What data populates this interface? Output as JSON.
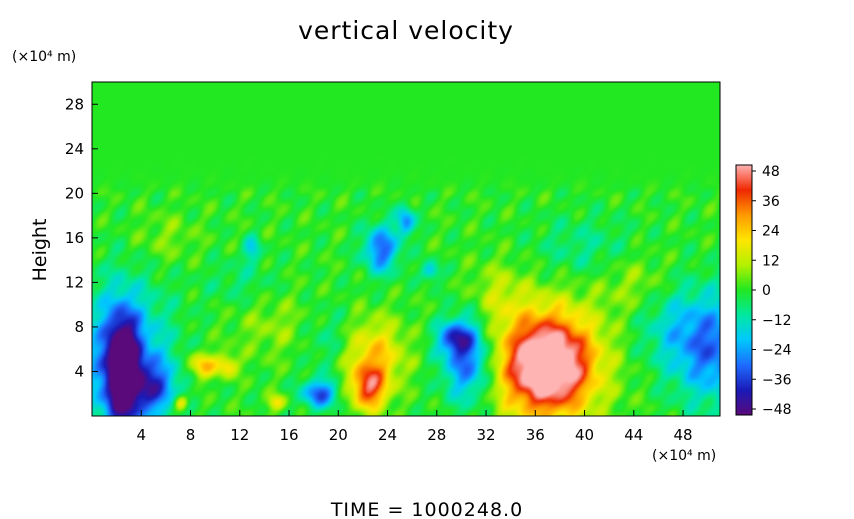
{
  "chart_data": {
    "type": "heatmap",
    "title": "vertical velocity",
    "ylabel": "Height",
    "y_unit": "(×10⁴ m)",
    "x_unit": "(×10⁴ m)",
    "x_ticks": [
      "4",
      "8",
      "12",
      "16",
      "20",
      "24",
      "28",
      "32",
      "36",
      "40",
      "44",
      "48"
    ],
    "y_ticks": [
      "4",
      "8",
      "12",
      "16",
      "20",
      "24",
      "28"
    ],
    "xlim": [
      0,
      51
    ],
    "ylim": [
      0,
      30
    ],
    "colorbar": {
      "ticks": [
        "48",
        "36",
        "24",
        "12",
        "0",
        "−12",
        "−24",
        "−36",
        "−48"
      ],
      "range": [
        -48,
        48
      ],
      "colors": [
        "#5a0a7a",
        "#1a1ab8",
        "#1e6cff",
        "#00c8ff",
        "#00e8a0",
        "#22e822",
        "#b4f000",
        "#ffe600",
        "#ff9a00",
        "#f02800",
        "#ffb4b4"
      ]
    },
    "features": [
      {
        "x": 37,
        "y": 4.5,
        "sx": 2.3,
        "sy": 2.8,
        "v": 48
      },
      {
        "x": 37,
        "y": 5,
        "sx": 3.4,
        "sy": 3.9,
        "v": 22
      },
      {
        "x": 22.5,
        "y": 2.5,
        "sx": 1.0,
        "sy": 1.4,
        "v": 35
      },
      {
        "x": 23,
        "y": 5.5,
        "sx": 1.7,
        "sy": 2.2,
        "v": 22
      },
      {
        "x": 9,
        "y": 4.5,
        "sx": 0.8,
        "sy": 0.8,
        "v": 25
      },
      {
        "x": 11,
        "y": 4.5,
        "sx": 0.6,
        "sy": 0.7,
        "v": 20
      },
      {
        "x": 7.2,
        "y": 1.2,
        "sx": 0.4,
        "sy": 0.5,
        "v": 26
      },
      {
        "x": 15,
        "y": 1.2,
        "sx": 0.5,
        "sy": 0.5,
        "v": 18
      },
      {
        "x": 2.5,
        "y": 4,
        "sx": 0.9,
        "sy": 3.5,
        "v": -48
      },
      {
        "x": 2.5,
        "y": 5,
        "sx": 2.6,
        "sy": 4.5,
        "v": -28
      },
      {
        "x": 5,
        "y": 2.5,
        "sx": 1.3,
        "sy": 1.6,
        "v": -24
      },
      {
        "x": 18.5,
        "y": 2,
        "sx": 1.0,
        "sy": 0.9,
        "v": -32
      },
      {
        "x": 30.5,
        "y": 5,
        "sx": 1.4,
        "sy": 2.6,
        "v": -32
      },
      {
        "x": 29.5,
        "y": 7,
        "sx": 1.0,
        "sy": 1.0,
        "v": -26
      },
      {
        "x": 23.5,
        "y": 15,
        "sx": 1.0,
        "sy": 1.5,
        "v": -30
      },
      {
        "x": 25.5,
        "y": 17.5,
        "sx": 0.5,
        "sy": 0.9,
        "v": -26
      },
      {
        "x": 50.5,
        "y": 6,
        "sx": 2.4,
        "sy": 3.4,
        "v": -28
      },
      {
        "x": 47,
        "y": 8,
        "sx": 2.2,
        "sy": 2.5,
        "v": -10
      },
      {
        "x": 27.5,
        "y": 13,
        "sx": 0.5,
        "sy": 0.6,
        "v": -20
      },
      {
        "x": 13,
        "y": 15,
        "sx": 0.5,
        "sy": 0.8,
        "v": -16
      },
      {
        "x": 12,
        "y": 12,
        "sx": 2.0,
        "sy": 1.5,
        "v": -6
      },
      {
        "x": 15,
        "y": 8,
        "sx": 2.5,
        "sy": 2.0,
        "v": 7
      },
      {
        "x": 40,
        "y": 15,
        "sx": 3.0,
        "sy": 2.0,
        "v": -8
      },
      {
        "x": 33,
        "y": 11,
        "sx": 1.5,
        "sy": 2.0,
        "v": 9
      },
      {
        "x": 44,
        "y": 12,
        "sx": 2.0,
        "sy": 2.0,
        "v": 8
      },
      {
        "x": 19,
        "y": 7,
        "sx": 1.5,
        "sy": 2.0,
        "v": -8
      },
      {
        "x": 6,
        "y": 16,
        "sx": 1.8,
        "sy": 1.6,
        "v": 6
      }
    ]
  },
  "footer": {
    "time_text": "TIME  =  1000248.0"
  }
}
